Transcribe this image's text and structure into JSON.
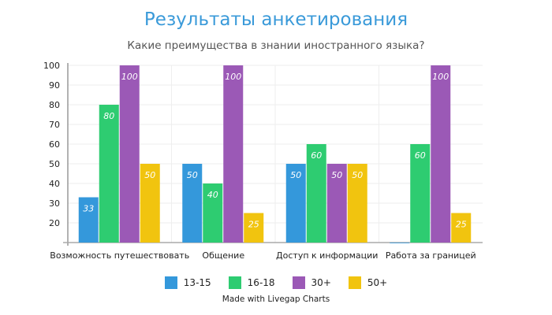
{
  "chart_data": {
    "type": "bar",
    "title": "Результаты анкетирования",
    "subtitle": "Какие преимущества в знании иностранного языка?",
    "categories": [
      "Возможность путешествовать",
      "Общение",
      "Доступ к информации",
      "Работа за границей"
    ],
    "series": [
      {
        "name": "13-15",
        "color": "#3498db",
        "values": [
          33,
          50,
          50,
          10
        ]
      },
      {
        "name": "16-18",
        "color": "#2ecc71",
        "values": [
          80,
          40,
          60,
          60
        ]
      },
      {
        "name": "30+",
        "color": "#9b59b6",
        "values": [
          100,
          100,
          50,
          100
        ]
      },
      {
        "name": "50+",
        "color": "#f1c40f",
        "values": [
          50,
          25,
          50,
          25
        ]
      }
    ],
    "yticks": [
      20,
      30,
      40,
      50,
      60,
      70,
      80,
      90,
      100
    ],
    "ylim": [
      10,
      100
    ],
    "grid": true,
    "legend": "bottom"
  },
  "credit": "Made with Livegap Charts"
}
